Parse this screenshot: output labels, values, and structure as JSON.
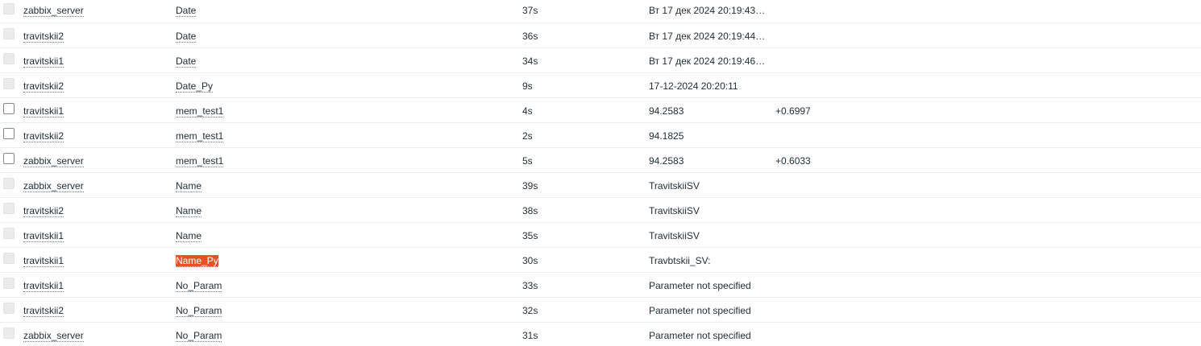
{
  "rows": [
    {
      "host": "zabbix_server",
      "name": "Date",
      "age": "37s",
      "value": "Вт 17 дек 2024 20:19:43…",
      "change": "",
      "enabled": false,
      "highlight": false
    },
    {
      "host": "travitskii2",
      "name": "Date",
      "age": "36s",
      "value": "Вт 17 дек 2024 20:19:44…",
      "change": "",
      "enabled": false,
      "highlight": false
    },
    {
      "host": "travitskii1",
      "name": "Date",
      "age": "34s",
      "value": "Вт 17 дек 2024 20:19:46…",
      "change": "",
      "enabled": false,
      "highlight": false
    },
    {
      "host": "travitskii2",
      "name": "Date_Py",
      "age": "9s",
      "value": "17-12-2024 20:20:11",
      "change": "",
      "enabled": false,
      "highlight": false
    },
    {
      "host": "travitskii1",
      "name": "mem_test1",
      "age": "4s",
      "value": "94.2583",
      "change": "+0.6997",
      "enabled": true,
      "highlight": false
    },
    {
      "host": "travitskii2",
      "name": "mem_test1",
      "age": "2s",
      "value": "94.1825",
      "change": "",
      "enabled": true,
      "highlight": false
    },
    {
      "host": "zabbix_server",
      "name": "mem_test1",
      "age": "5s",
      "value": "94.2583",
      "change": "+0.6033",
      "enabled": true,
      "highlight": false
    },
    {
      "host": "zabbix_server",
      "name": "Name",
      "age": "39s",
      "value": "TravitskiiSV",
      "change": "",
      "enabled": false,
      "highlight": false
    },
    {
      "host": "travitskii2",
      "name": "Name",
      "age": "38s",
      "value": "TravitskiiSV",
      "change": "",
      "enabled": false,
      "highlight": false
    },
    {
      "host": "travitskii1",
      "name": "Name",
      "age": "35s",
      "value": "TravitskiiSV",
      "change": "",
      "enabled": false,
      "highlight": false
    },
    {
      "host": "travitskii1",
      "name": "Name_Py",
      "age": "30s",
      "value": "Travbtskii_SV:",
      "change": "",
      "enabled": false,
      "highlight": true
    },
    {
      "host": "travitskii1",
      "name": "No_Param",
      "age": "33s",
      "value": "Parameter not specified",
      "change": "",
      "enabled": false,
      "highlight": false
    },
    {
      "host": "travitskii2",
      "name": "No_Param",
      "age": "32s",
      "value": "Parameter not specified",
      "change": "",
      "enabled": false,
      "highlight": false
    },
    {
      "host": "zabbix_server",
      "name": "No_Param",
      "age": "31s",
      "value": "Parameter not specified",
      "change": "",
      "enabled": false,
      "highlight": false
    }
  ],
  "colors": {
    "highlight_bg": "#e45228",
    "text": "#1f2c33",
    "row_border": "#ebeef0"
  }
}
